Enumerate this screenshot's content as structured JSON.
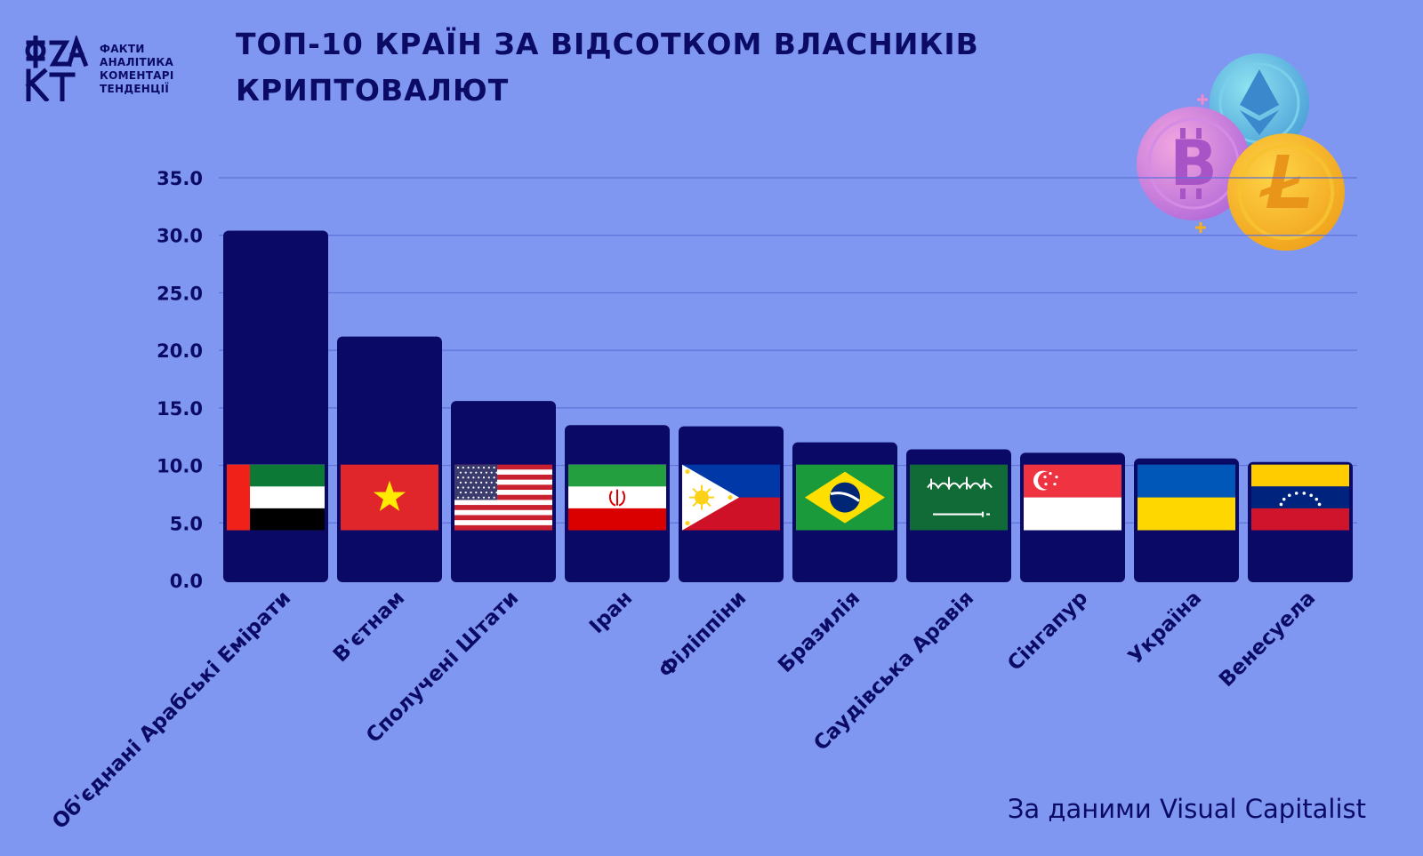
{
  "logo": {
    "mark_text": "ФАКТ",
    "lines": [
      "ФАКТИ",
      "АНАЛІТИКА",
      "КОМЕНТАРІ",
      "ТЕНДЕНЦІЇ"
    ]
  },
  "title_lines": [
    "ТОП-10 КРАЇН ЗА ВІДСОТКОМ ВЛАСНИКІВ",
    "КРИПТОВАЛЮТ"
  ],
  "illustration_icons": [
    "bitcoin-coin-icon",
    "ethereum-coin-icon",
    "litecoin-coin-icon"
  ],
  "source": "За даними Visual Capitalist",
  "colors": {
    "background": "#7f97f0",
    "bar": "#0a0a66",
    "gridline": "#5e72d8",
    "text": "#0b0b66"
  },
  "chart_data": {
    "type": "bar",
    "title": "ТОП-10 КРАЇН ЗА ВІДСОТКОМ ВЛАСНИКІВ КРИПТОВАЛЮТ",
    "xlabel": "",
    "ylabel": "",
    "ylim": [
      0,
      35
    ],
    "yticks": [
      0,
      5,
      10,
      15,
      20,
      25,
      30,
      35
    ],
    "ytick_labels": [
      "0.0",
      "5.0",
      "10.0",
      "15.0",
      "20.0",
      "25.0",
      "30.0",
      "35.0"
    ],
    "grid": true,
    "categories": [
      "Об'єднані Арабські Емірати",
      "В'єтнам",
      "Сполучені Штати",
      "Іран",
      "Філіппіни",
      "Бразилія",
      "Саудівська Аравія",
      "Сінгапур",
      "Україна",
      "Венесуела"
    ],
    "values": [
      30.4,
      21.2,
      15.6,
      13.5,
      13.4,
      12.0,
      11.4,
      11.1,
      10.6,
      10.3
    ],
    "flags": [
      "uae",
      "vietnam",
      "usa",
      "iran",
      "philippines",
      "brazil",
      "saudi-arabia",
      "singapore",
      "ukraine",
      "venezuela"
    ]
  }
}
